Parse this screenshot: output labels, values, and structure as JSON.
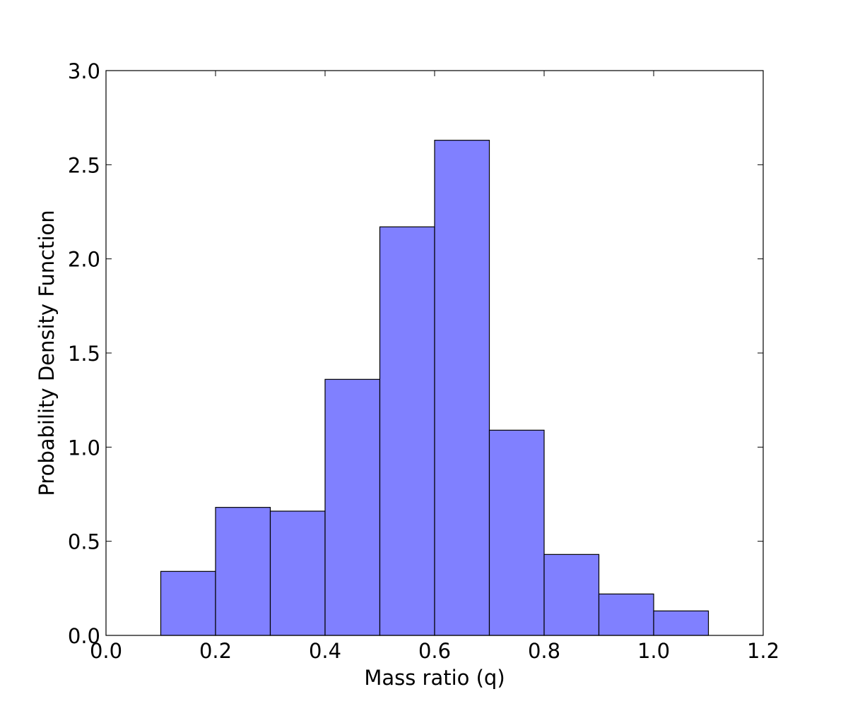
{
  "chart_data": {
    "type": "bar",
    "title": "",
    "xlabel": "Mass ratio (q)",
    "ylabel": "Probability Density Function",
    "xlim": [
      0.0,
      1.2
    ],
    "ylim": [
      0.0,
      3.0
    ],
    "x_ticks": [
      "0.0",
      "0.2",
      "0.4",
      "0.6",
      "0.8",
      "1.0",
      "1.2"
    ],
    "y_ticks": [
      "0.0",
      "0.5",
      "1.0",
      "1.5",
      "2.0",
      "2.5",
      "3.0"
    ],
    "bin_edges": [
      0.1,
      0.2,
      0.3,
      0.4,
      0.5,
      0.6,
      0.7,
      0.8,
      0.9,
      1.0,
      1.1
    ],
    "values": [
      0.34,
      0.68,
      0.66,
      1.36,
      2.17,
      2.63,
      1.09,
      0.43,
      0.22,
      0.13
    ],
    "grid": false,
    "legend": "none",
    "colors": {
      "bar_fill": "#8080ff",
      "bar_edge": "#000000",
      "axes": "#000000"
    }
  }
}
